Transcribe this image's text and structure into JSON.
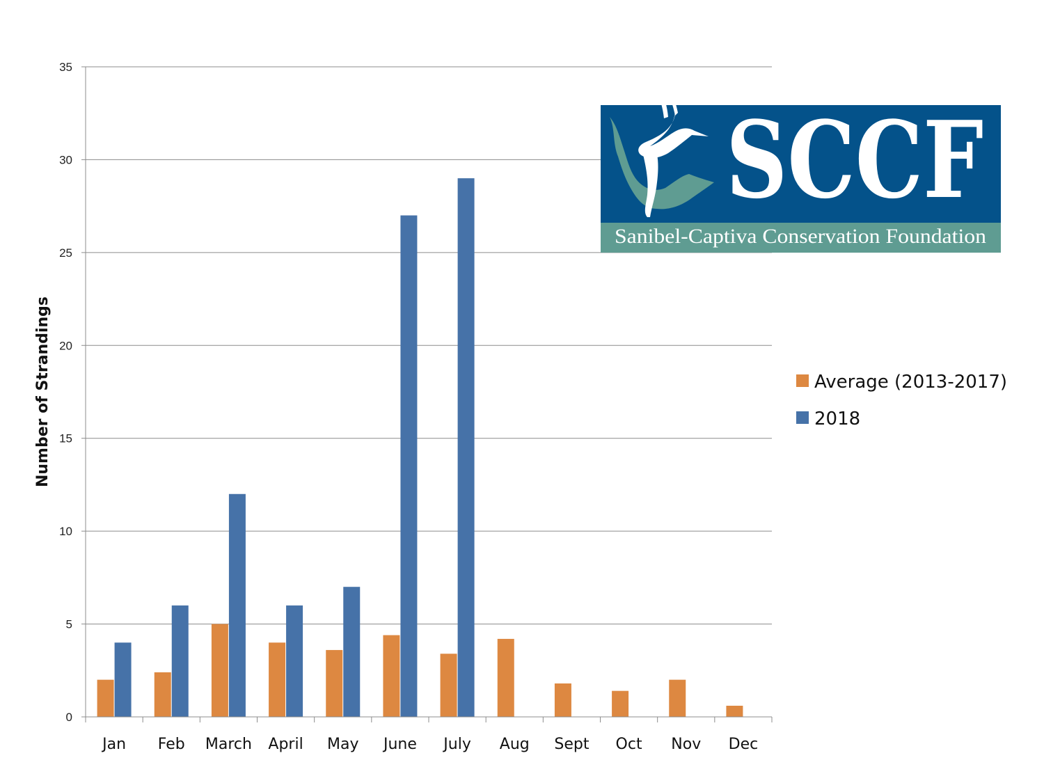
{
  "chart_data": {
    "type": "bar",
    "categories": [
      "Jan",
      "Feb",
      "March",
      "April",
      "May",
      "June",
      "July",
      "Aug",
      "Sept",
      "Oct",
      "Nov",
      "Dec"
    ],
    "series": [
      {
        "name": "Average (2013-2017)",
        "color": "#DD8841",
        "values": [
          2,
          2.4,
          5,
          4,
          3.6,
          4.4,
          3.4,
          4.2,
          1.8,
          1.4,
          2,
          0.6
        ]
      },
      {
        "name": "2018",
        "color": "#4672A8",
        "values": [
          4,
          6,
          12,
          6,
          7,
          27,
          29,
          null,
          null,
          null,
          null,
          null
        ]
      }
    ],
    "ylabel": "Number of Strandings",
    "ylim": [
      0,
      35
    ],
    "yticks": [
      0,
      5,
      10,
      15,
      20,
      25,
      30,
      35
    ],
    "grid": true,
    "legend": "right"
  },
  "logo": {
    "name": "SCCF",
    "subtitle": "Sanibel-Captiva Conservation Foundation",
    "colors": {
      "main": "#04528A",
      "band": "#5F9C92",
      "island": "#5F9C92"
    },
    "icon": "pelican-icon"
  }
}
